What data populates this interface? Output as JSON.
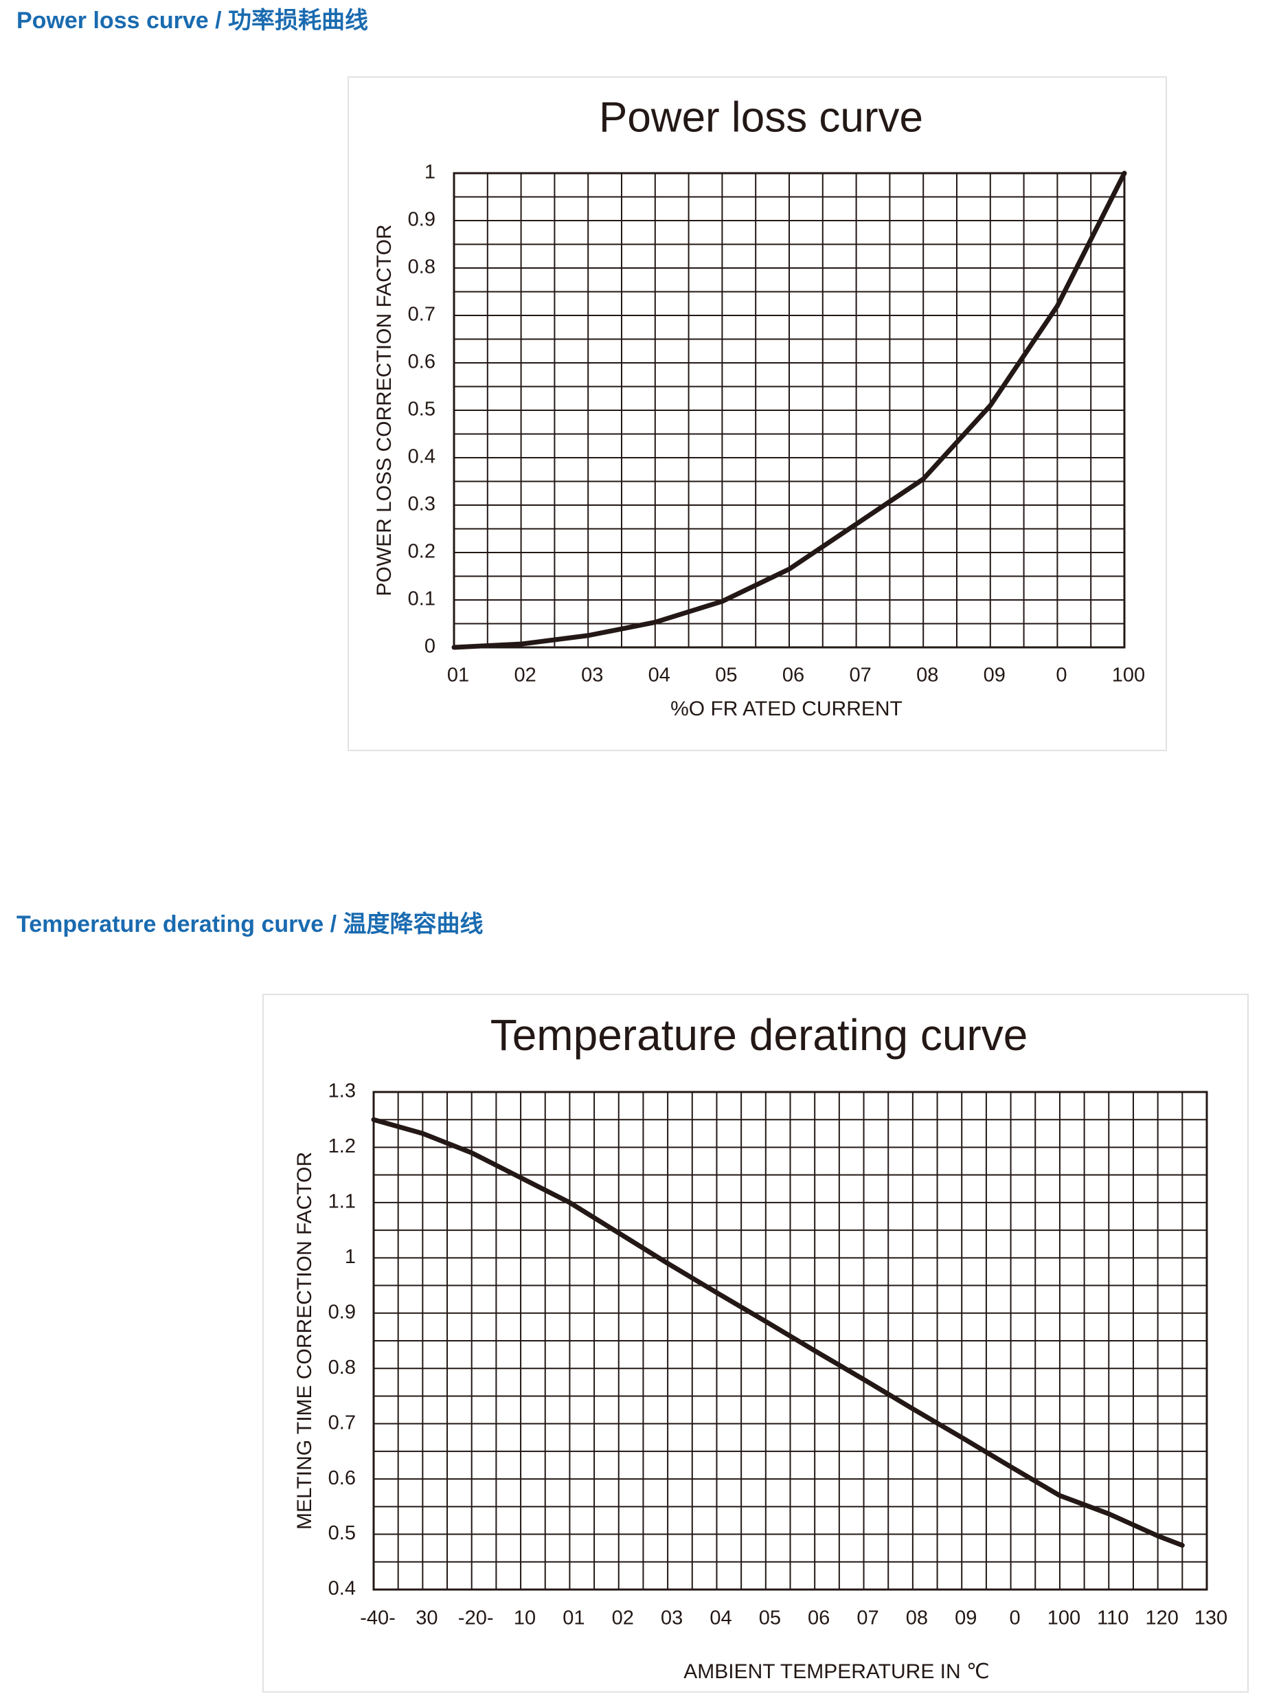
{
  "headings": [
    "Power loss curve / 功率损耗曲线",
    "Temperature derating curve / 温度降容曲线"
  ],
  "chart_data": [
    {
      "type": "line",
      "title": "Power loss curve",
      "xlabel": "%O FR ATED CURRENT",
      "ylabel": "POWER LOSS CORRECTION FACTOR",
      "color": "#231815",
      "x": [
        0,
        10,
        20,
        30,
        40,
        50,
        60,
        70,
        80,
        90,
        100
      ],
      "values": [
        0,
        0.007,
        0.025,
        0.053,
        0.097,
        0.165,
        0.26,
        0.355,
        0.51,
        0.72,
        1.0
      ],
      "xlim": [
        0,
        100
      ],
      "ylim": [
        0,
        1
      ],
      "xticks": [
        {
          "value": 0,
          "label": "01"
        },
        {
          "value": 10,
          "label": "02"
        },
        {
          "value": 20,
          "label": "03"
        },
        {
          "value": 30,
          "label": "04"
        },
        {
          "value": 40,
          "label": "05"
        },
        {
          "value": 50,
          "label": "06"
        },
        {
          "value": 60,
          "label": "07"
        },
        {
          "value": 70,
          "label": "08"
        },
        {
          "value": 80,
          "label": "09"
        },
        {
          "value": 90,
          "label": "0"
        },
        100
      ],
      "yticks": [
        0,
        0.1,
        0.2,
        0.3,
        0.4,
        0.5,
        0.6,
        0.7,
        0.8,
        0.9,
        1
      ],
      "grid": true
    },
    {
      "type": "line",
      "title": "Temperature derating curve",
      "xlabel": "AMBIENT TEMPERATURE IN ℃",
      "ylabel": "MELTING TIME CORRECTION FACTOR",
      "color": "#231815",
      "x": [
        -40,
        -30,
        -20,
        -10,
        0,
        10,
        20,
        30,
        40,
        50,
        60,
        70,
        80,
        90,
        100,
        110,
        120,
        125
      ],
      "values": [
        1.25,
        1.225,
        1.19,
        1.145,
        1.1,
        1.045,
        0.99,
        0.937,
        0.885,
        0.832,
        0.78,
        0.727,
        0.675,
        0.622,
        0.57,
        0.537,
        0.497,
        0.48
      ],
      "xlim": [
        -40,
        130
      ],
      "ylim": [
        0.4,
        1.3
      ],
      "xticks": [
        {
          "value": -40,
          "label": "-40-"
        },
        {
          "value": -30,
          "label": "30"
        },
        {
          "value": -20,
          "label": "-20-"
        },
        {
          "value": -10,
          "label": "10"
        },
        {
          "value": 0,
          "label": "01"
        },
        {
          "value": 10,
          "label": "02"
        },
        {
          "value": 20,
          "label": "03"
        },
        {
          "value": 30,
          "label": "04"
        },
        {
          "value": 40,
          "label": "05"
        },
        {
          "value": 50,
          "label": "06"
        },
        {
          "value": 60,
          "label": "07"
        },
        {
          "value": 70,
          "label": "08"
        },
        {
          "value": 80,
          "label": "09"
        },
        {
          "value": 90,
          "label": "0"
        },
        100,
        110,
        120,
        130
      ],
      "yticks": [
        0.4,
        0.5,
        0.6,
        0.7,
        0.8,
        0.9,
        1,
        1.1,
        1.2,
        1.3
      ],
      "grid": true
    }
  ]
}
